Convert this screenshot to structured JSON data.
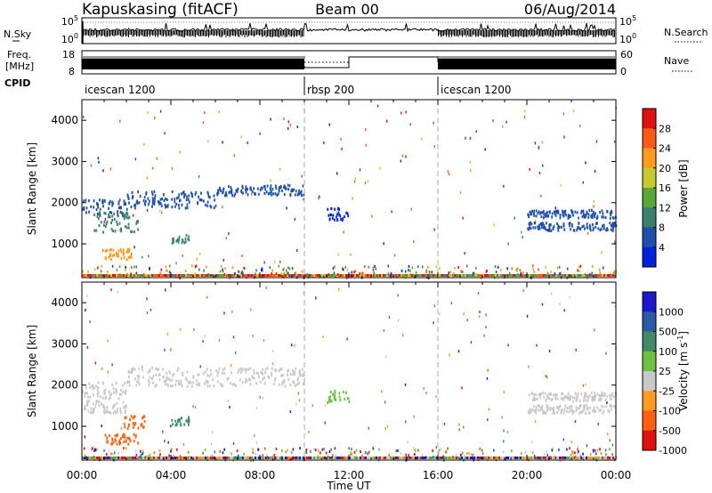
{
  "header": {
    "station": "Kapuskasing (fitACF)",
    "beam": "Beam 00",
    "date": "06/Aug/2014"
  },
  "status_panels": {
    "nsky_label": "N.Sky",
    "nsky_ticks": [
      "10^5",
      "10^0"
    ],
    "nsearch_label": "N.Search",
    "nsearch_ticks": [
      "10^5",
      "10^0"
    ],
    "freq_label": "Freq.",
    "freq_unit": "[MHz]",
    "freq_ticks": [
      "18",
      "8"
    ],
    "nave_label": "Nave",
    "nave_ticks": [
      "60",
      "0"
    ],
    "cpid_label": "CPID",
    "cpid_segments": [
      {
        "label": "icescan 1200",
        "start": 0,
        "end": 10
      },
      {
        "label": "rbsp 200",
        "start": 10,
        "end": 16
      },
      {
        "label": "icescan 1200",
        "start": 16,
        "end": 24
      }
    ]
  },
  "chart_data": [
    {
      "type": "heatmap",
      "title": "",
      "xlabel": "Time UT",
      "ylabel": "Slant Range [km]",
      "xlim": [
        0,
        24
      ],
      "ylim": [
        180,
        4500
      ],
      "yticks": [
        "1000",
        "2000",
        "3000",
        "4000"
      ],
      "colorbar_label": "Power [dB]",
      "colorbar_ticks": [
        "4",
        "8",
        "12",
        "16",
        "20",
        "24",
        "28"
      ],
      "colorbar_range": [
        0,
        30
      ],
      "colors": [
        "#0022dd",
        "#1f4fa8",
        "#3b7f6e",
        "#58a838",
        "#c8c830",
        "#ff9a20",
        "#ff5a18",
        "#e01010"
      ],
      "dashed_vlines_hours": [
        10,
        16
      ],
      "features": [
        {
          "t0": 0.0,
          "t1": 2.0,
          "r0": 1700,
          "r1": 2100,
          "value": 8
        },
        {
          "t0": 0.5,
          "t1": 2.5,
          "r0": 1300,
          "r1": 1800,
          "value": 12
        },
        {
          "t0": 1.0,
          "t1": 2.3,
          "r0": 650,
          "r1": 900,
          "value": 22
        },
        {
          "t0": 2.0,
          "t1": 6.0,
          "r0": 1900,
          "r1": 2300,
          "value": 8
        },
        {
          "t0": 4.0,
          "t1": 4.8,
          "r0": 1050,
          "r1": 1250,
          "value": 12
        },
        {
          "t0": 6.0,
          "t1": 10.0,
          "r0": 2200,
          "r1": 2450,
          "value": 8
        },
        {
          "t0": 11.0,
          "t1": 12.0,
          "r0": 1600,
          "r1": 1900,
          "value": 4
        },
        {
          "t0": 20.0,
          "t1": 24.0,
          "r0": 1650,
          "r1": 1850,
          "value": 8
        },
        {
          "t0": 20.0,
          "t1": 24.0,
          "r0": 1350,
          "r1": 1550,
          "value": 8
        }
      ]
    },
    {
      "type": "heatmap",
      "title": "",
      "xlabel": "Time UT",
      "ylabel": "Slant Range [km]",
      "xlim": [
        0,
        24
      ],
      "ylim": [
        180,
        4500
      ],
      "xticks": [
        "00:00",
        "04:00",
        "08:00",
        "12:00",
        "16:00",
        "20:00",
        "00:00"
      ],
      "yticks": [
        "1000",
        "2000",
        "3000",
        "4000"
      ],
      "colorbar_label": "Velocity [m s^-1]",
      "colorbar_ticks": [
        "1000",
        "500",
        "100",
        "25",
        "-25",
        "-100",
        "-500",
        "-1000"
      ],
      "colors": [
        "#1a1acc",
        "#2a5aa8",
        "#3f8a68",
        "#6dc040",
        "#c8c8c8",
        "#ff9a20",
        "#ff6010",
        "#e01010"
      ],
      "dashed_vlines_hours": [
        10,
        16
      ],
      "features": [
        {
          "t0": 0.0,
          "t1": 2.0,
          "r0": 1700,
          "r1": 2100,
          "value": 0
        },
        {
          "t0": 0.0,
          "t1": 2.0,
          "r0": 1350,
          "r1": 1650,
          "value": -10
        },
        {
          "t0": 1.0,
          "t1": 2.5,
          "r0": 600,
          "r1": 850,
          "value": -400
        },
        {
          "t0": 1.8,
          "t1": 2.8,
          "r0": 950,
          "r1": 1300,
          "value": -150
        },
        {
          "t0": 2.0,
          "t1": 10.0,
          "r0": 2000,
          "r1": 2450,
          "value": 0
        },
        {
          "t0": 4.0,
          "t1": 4.8,
          "r0": 1050,
          "r1": 1250,
          "value": 300
        },
        {
          "t0": 11.0,
          "t1": 12.0,
          "r0": 1600,
          "r1": 1900,
          "value": 60
        },
        {
          "t0": 20.0,
          "t1": 24.0,
          "r0": 1650,
          "r1": 1850,
          "value": 0
        },
        {
          "t0": 20.0,
          "t1": 24.0,
          "r0": 1350,
          "r1": 1550,
          "value": 0
        }
      ]
    }
  ]
}
